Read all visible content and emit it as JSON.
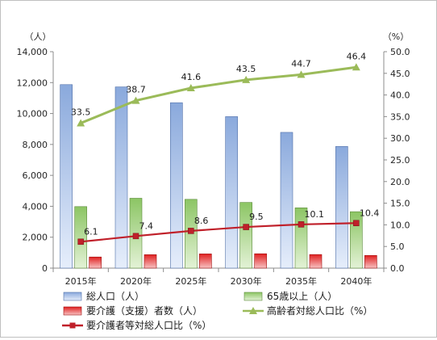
{
  "chart_data": {
    "type": "bar",
    "categories": [
      "2015年",
      "2020年",
      "2025年",
      "2030年",
      "2035年",
      "2040年"
    ],
    "y_left": {
      "unit": "（人）",
      "ylim": [
        0,
        14000
      ],
      "ticks": [
        "0",
        "2,000",
        "4,000",
        "6,000",
        "8,000",
        "10,000",
        "12,000",
        "14,000"
      ]
    },
    "y_right": {
      "unit": "（%）",
      "ylim": [
        0,
        50
      ],
      "ticks": [
        "0.0",
        "5.0",
        "10.0",
        "15.0",
        "20.0",
        "25.0",
        "30.0",
        "35.0",
        "40.0",
        "45.0",
        "50.0"
      ]
    },
    "series": [
      {
        "name": "総人口（人）",
        "type": "bar",
        "axis": "left",
        "color": "#8aa9dc",
        "values": [
          11870,
          11720,
          10700,
          9800,
          8780,
          7870
        ]
      },
      {
        "name": "65歳以上（人）",
        "type": "bar",
        "axis": "left",
        "color": "#8cc564",
        "values": [
          3980,
          4520,
          4450,
          4250,
          3900,
          3650
        ]
      },
      {
        "name": "要介護（支援）者数（人）",
        "type": "bar",
        "axis": "left",
        "color": "#e02020",
        "values": [
          720,
          870,
          920,
          930,
          880,
          820
        ]
      },
      {
        "name": "高齢者対総人口比（%）",
        "type": "line",
        "axis": "right",
        "color": "#9bbb59",
        "marker": "triangle",
        "values": [
          33.5,
          38.7,
          41.6,
          43.5,
          44.7,
          46.4
        ],
        "labels": [
          "33.5",
          "38.7",
          "41.6",
          "43.5",
          "44.7",
          "46.4"
        ]
      },
      {
        "name": "要介護者等対総人口比（%）",
        "type": "line",
        "axis": "right",
        "color": "#c0202a",
        "marker": "square",
        "values": [
          6.1,
          7.4,
          8.6,
          9.5,
          10.1,
          10.4
        ],
        "labels": [
          "6.1",
          "7.4",
          "8.6",
          "9.5",
          "10.1",
          "10.4"
        ]
      }
    ],
    "grid": false,
    "legend_position": "bottom"
  }
}
